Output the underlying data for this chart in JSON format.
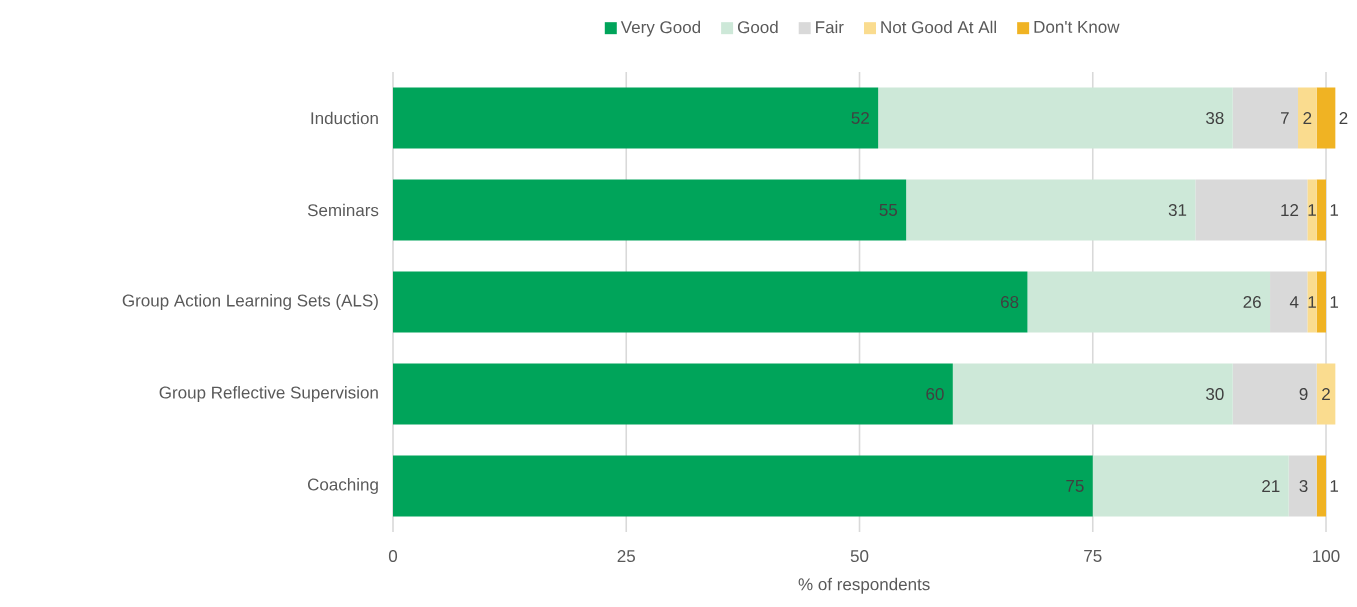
{
  "chart_data": {
    "type": "bar",
    "orientation": "horizontal",
    "stacked": true,
    "data_labels": true,
    "grid": "x",
    "legend": "top",
    "categories": [
      "Induction",
      "Seminars",
      "Group Action Learning Sets (ALS)",
      "Group Reflective Supervision",
      "Coaching"
    ],
    "xlabel": "% of respondents",
    "xlim": [
      0,
      101
    ],
    "xticks": [
      0,
      25,
      50,
      75,
      100
    ],
    "series": [
      {
        "name": "Very Good",
        "color": "#00a45a",
        "values": [
          52,
          55,
          68,
          60,
          75
        ]
      },
      {
        "name": "Good",
        "color": "#cde8d8",
        "values": [
          38,
          31,
          26,
          30,
          21
        ]
      },
      {
        "name": "Fair",
        "color": "#d9d9d9",
        "values": [
          7,
          12,
          4,
          9,
          3
        ]
      },
      {
        "name": "Not Good At All",
        "color": "#fadc8f",
        "values": [
          2,
          1,
          1,
          2,
          null
        ]
      },
      {
        "name": "Don't Know",
        "color": "#f0b323",
        "values": [
          2,
          1,
          1,
          null,
          1
        ]
      }
    ]
  }
}
